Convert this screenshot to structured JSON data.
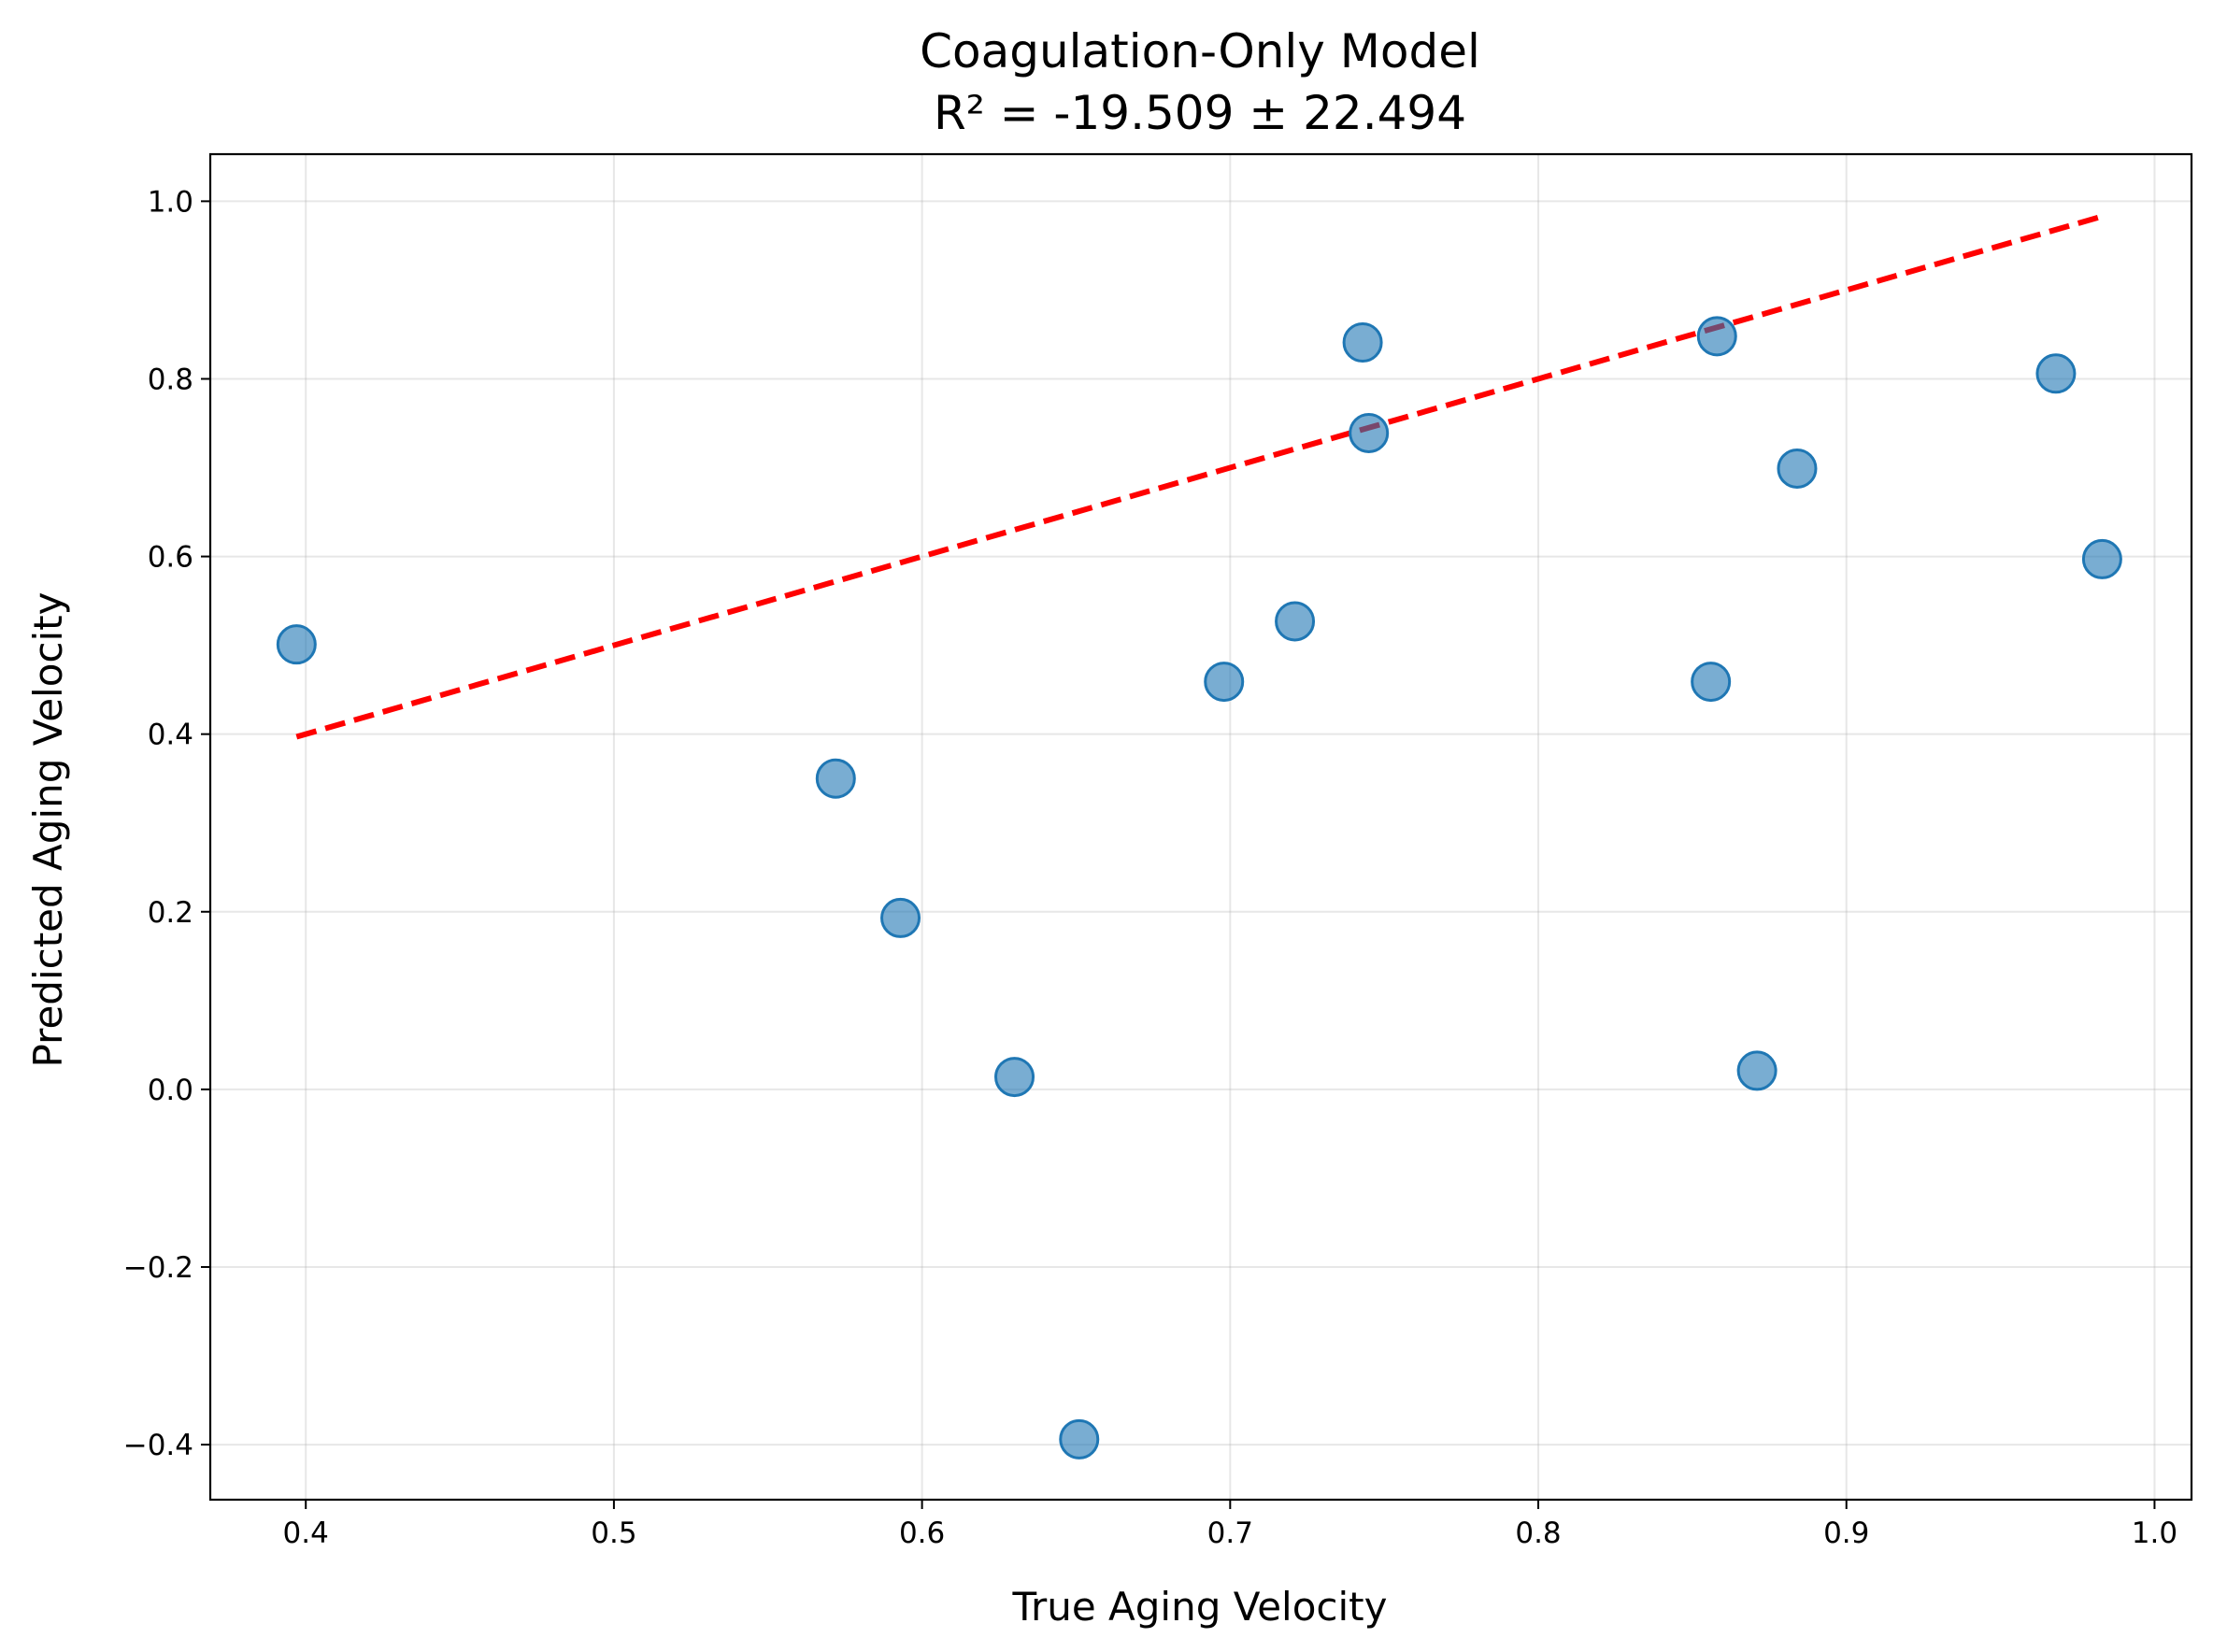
{
  "chart_data": {
    "type": "scatter",
    "title": "Coagulation-Only Model",
    "subtitle": "R² = -19.509 ± 22.494",
    "xlabel": "True Aging Velocity",
    "ylabel": "Predicted Aging Velocity",
    "xlim": [
      0.369,
      1.012
    ],
    "ylim": [
      -0.462,
      1.053
    ],
    "xticks": [
      0.4,
      0.5,
      0.6,
      0.7,
      0.8,
      0.9,
      1.0
    ],
    "xtick_labels": [
      "0.4",
      "0.5",
      "0.6",
      "0.7",
      "0.8",
      "0.9",
      "1.0"
    ],
    "yticks": [
      -0.4,
      -0.2,
      0.0,
      0.2,
      0.4,
      0.6,
      0.8,
      1.0
    ],
    "ytick_labels": [
      "−0.4",
      "−0.2",
      "0.0",
      "0.2",
      "0.4",
      "0.6",
      "0.8",
      "1.0"
    ],
    "grid": true,
    "colors": {
      "point_fill": "#1f77b4",
      "point_opacity": 0.6,
      "reference_line": "#ff0000"
    },
    "reference_line": {
      "style": "dashed",
      "x": [
        0.397,
        0.983
      ],
      "y": [
        0.397,
        0.983
      ]
    },
    "points": [
      {
        "x": 0.397,
        "y": 0.501
      },
      {
        "x": 0.572,
        "y": 0.35
      },
      {
        "x": 0.593,
        "y": 0.193
      },
      {
        "x": 0.63,
        "y": 0.014
      },
      {
        "x": 0.651,
        "y": -0.394
      },
      {
        "x": 0.698,
        "y": 0.459
      },
      {
        "x": 0.721,
        "y": 0.527
      },
      {
        "x": 0.743,
        "y": 0.841
      },
      {
        "x": 0.745,
        "y": 0.739
      },
      {
        "x": 0.856,
        "y": 0.459
      },
      {
        "x": 0.858,
        "y": 0.848
      },
      {
        "x": 0.871,
        "y": 0.021
      },
      {
        "x": 0.884,
        "y": 0.699
      },
      {
        "x": 0.968,
        "y": 0.806
      },
      {
        "x": 0.983,
        "y": 0.597
      }
    ]
  }
}
